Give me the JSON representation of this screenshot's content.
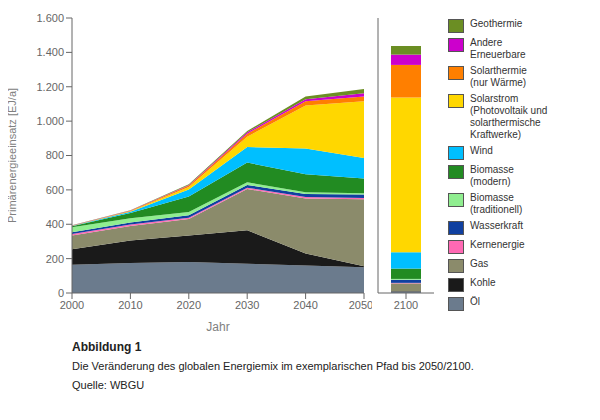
{
  "chart_data": [
    {
      "type": "area",
      "stacked": true,
      "x": [
        2000,
        2010,
        2020,
        2030,
        2040,
        2050
      ],
      "xlim": [
        2000,
        2050
      ],
      "xticks": [
        2000,
        2010,
        2020,
        2030,
        2040,
        2050
      ],
      "xlabel": "Jahr",
      "ylabel": "Primärenergieeinsatz [EJ/a]",
      "ylim": [
        0,
        1600
      ],
      "yticks": [
        0,
        200,
        400,
        600,
        800,
        {
          "value": 1000,
          "label": "1.000"
        },
        {
          "value": 1200,
          "label": "1.200"
        },
        {
          "value": 1400,
          "label": "1.400"
        },
        {
          "value": 1600,
          "label": "1.600"
        }
      ],
      "legend": "right",
      "annotations": [
        "Abbildung 1",
        "Die Veränderung des globalen Energiemix im exemplarischen Pfad bis 2050/2100.",
        "Quelle: WBGU"
      ],
      "series": [
        {
          "name": "Öl",
          "color": "#6B7B8D",
          "values": [
            165,
            175,
            180,
            170,
            160,
            150
          ]
        },
        {
          "name": "Kohle",
          "color": "#1A1A1A",
          "values": [
            90,
            130,
            155,
            195,
            70,
            5
          ]
        },
        {
          "name": "Gas",
          "color": "#8B8B6B",
          "values": [
            80,
            85,
            95,
            240,
            320,
            390
          ]
        },
        {
          "name": "Kernenergie",
          "color": "#FF69B4",
          "values": [
            8,
            8,
            8,
            8,
            8,
            8
          ]
        },
        {
          "name": "Wasserkraft",
          "color": "#1040A0",
          "values": [
            10,
            12,
            14,
            16,
            18,
            20
          ]
        },
        {
          "name": "Biomasse\n(traditionell)",
          "color": "#90EE90",
          "values": [
            30,
            25,
            20,
            15,
            10,
            8
          ]
        },
        {
          "name": "Biomasse\n(modern)",
          "color": "#228B22",
          "values": [
            5,
            30,
            90,
            115,
            105,
            85
          ]
        },
        {
          "name": "Wind",
          "color": "#00BFFF",
          "values": [
            2,
            8,
            40,
            90,
            150,
            120
          ]
        },
        {
          "name": "Solarstrom\n(Photovoltaik und\nsolarthermische\nKraftwerke)",
          "color": "#FFD700",
          "values": [
            1,
            3,
            15,
            60,
            250,
            330
          ]
        },
        {
          "name": "Solarthermie\n(nur Wärme)",
          "color": "#FF7F00",
          "values": [
            1,
            2,
            8,
            18,
            25,
            28
          ]
        },
        {
          "name": "Andere\nErneuerbare",
          "color": "#CC00CC",
          "values": [
            1,
            2,
            4,
            8,
            12,
            18
          ]
        },
        {
          "name": "Geothermie",
          "color": "#6B8E23",
          "values": [
            1,
            2,
            4,
            8,
            15,
            25
          ]
        }
      ]
    },
    {
      "type": "bar",
      "stacked": true,
      "categories": [
        "2100"
      ],
      "ylim": [
        0,
        1600
      ],
      "tick_labels": "x",
      "series": [
        {
          "name": "Öl",
          "color": "#6B7B8D",
          "values": [
            8
          ]
        },
        {
          "name": "Kohle",
          "color": "#1A1A1A",
          "values": [
            3
          ]
        },
        {
          "name": "Gas",
          "color": "#8B8B6B",
          "values": [
            45
          ]
        },
        {
          "name": "Kernenergie",
          "color": "#FF69B4",
          "values": [
            3
          ]
        },
        {
          "name": "Wasserkraft",
          "color": "#1040A0",
          "values": [
            18
          ]
        },
        {
          "name": "Biomasse\n(traditionell)",
          "color": "#90EE90",
          "values": [
            5
          ]
        },
        {
          "name": "Biomasse\n(modern)",
          "color": "#228B22",
          "values": [
            60
          ]
        },
        {
          "name": "Wind",
          "color": "#00BFFF",
          "values": [
            95
          ]
        },
        {
          "name": "Solarstrom\n(Photovoltaik und\nsolarthermische\nKraftwerke)",
          "color": "#FFD700",
          "values": [
            900
          ]
        },
        {
          "name": "Solarthermie\n(nur Wärme)",
          "color": "#FF7F00",
          "values": [
            190
          ]
        },
        {
          "name": "Andere\nErneuerbare",
          "color": "#CC00CC",
          "values": [
            60
          ]
        },
        {
          "name": "Geothermie",
          "color": "#6B8E23",
          "values": [
            50
          ]
        }
      ]
    }
  ]
}
